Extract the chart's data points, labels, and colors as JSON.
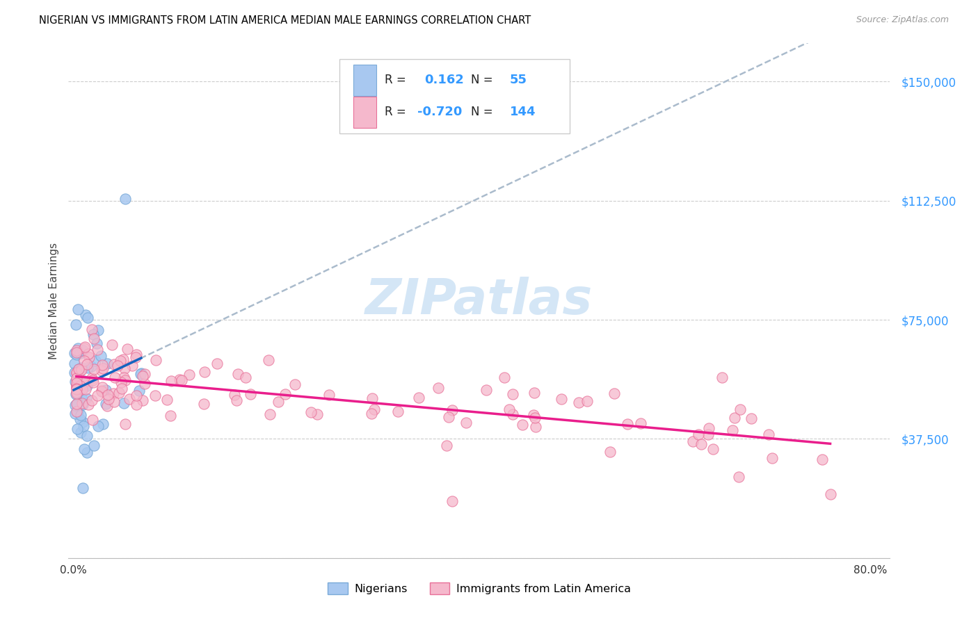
{
  "title": "NIGERIAN VS IMMIGRANTS FROM LATIN AMERICA MEDIAN MALE EARNINGS CORRELATION CHART",
  "source": "Source: ZipAtlas.com",
  "ylabel": "Median Male Earnings",
  "blue_color": "#A8C8F0",
  "blue_edge_color": "#7AAAD8",
  "pink_color": "#F5B8CC",
  "pink_edge_color": "#E87098",
  "blue_line_color": "#1565C0",
  "pink_line_color": "#E91E8C",
  "dashed_line_color": "#AABBCC",
  "ytick_color": "#3399FF",
  "watermark_color": "#D0E4F5",
  "background_color": "#FFFFFF",
  "title_fontsize": 10.5,
  "source_fontsize": 9,
  "legend_r1": "0.162",
  "legend_n1": "55",
  "legend_r2": "-0.720",
  "legend_n2": "144"
}
